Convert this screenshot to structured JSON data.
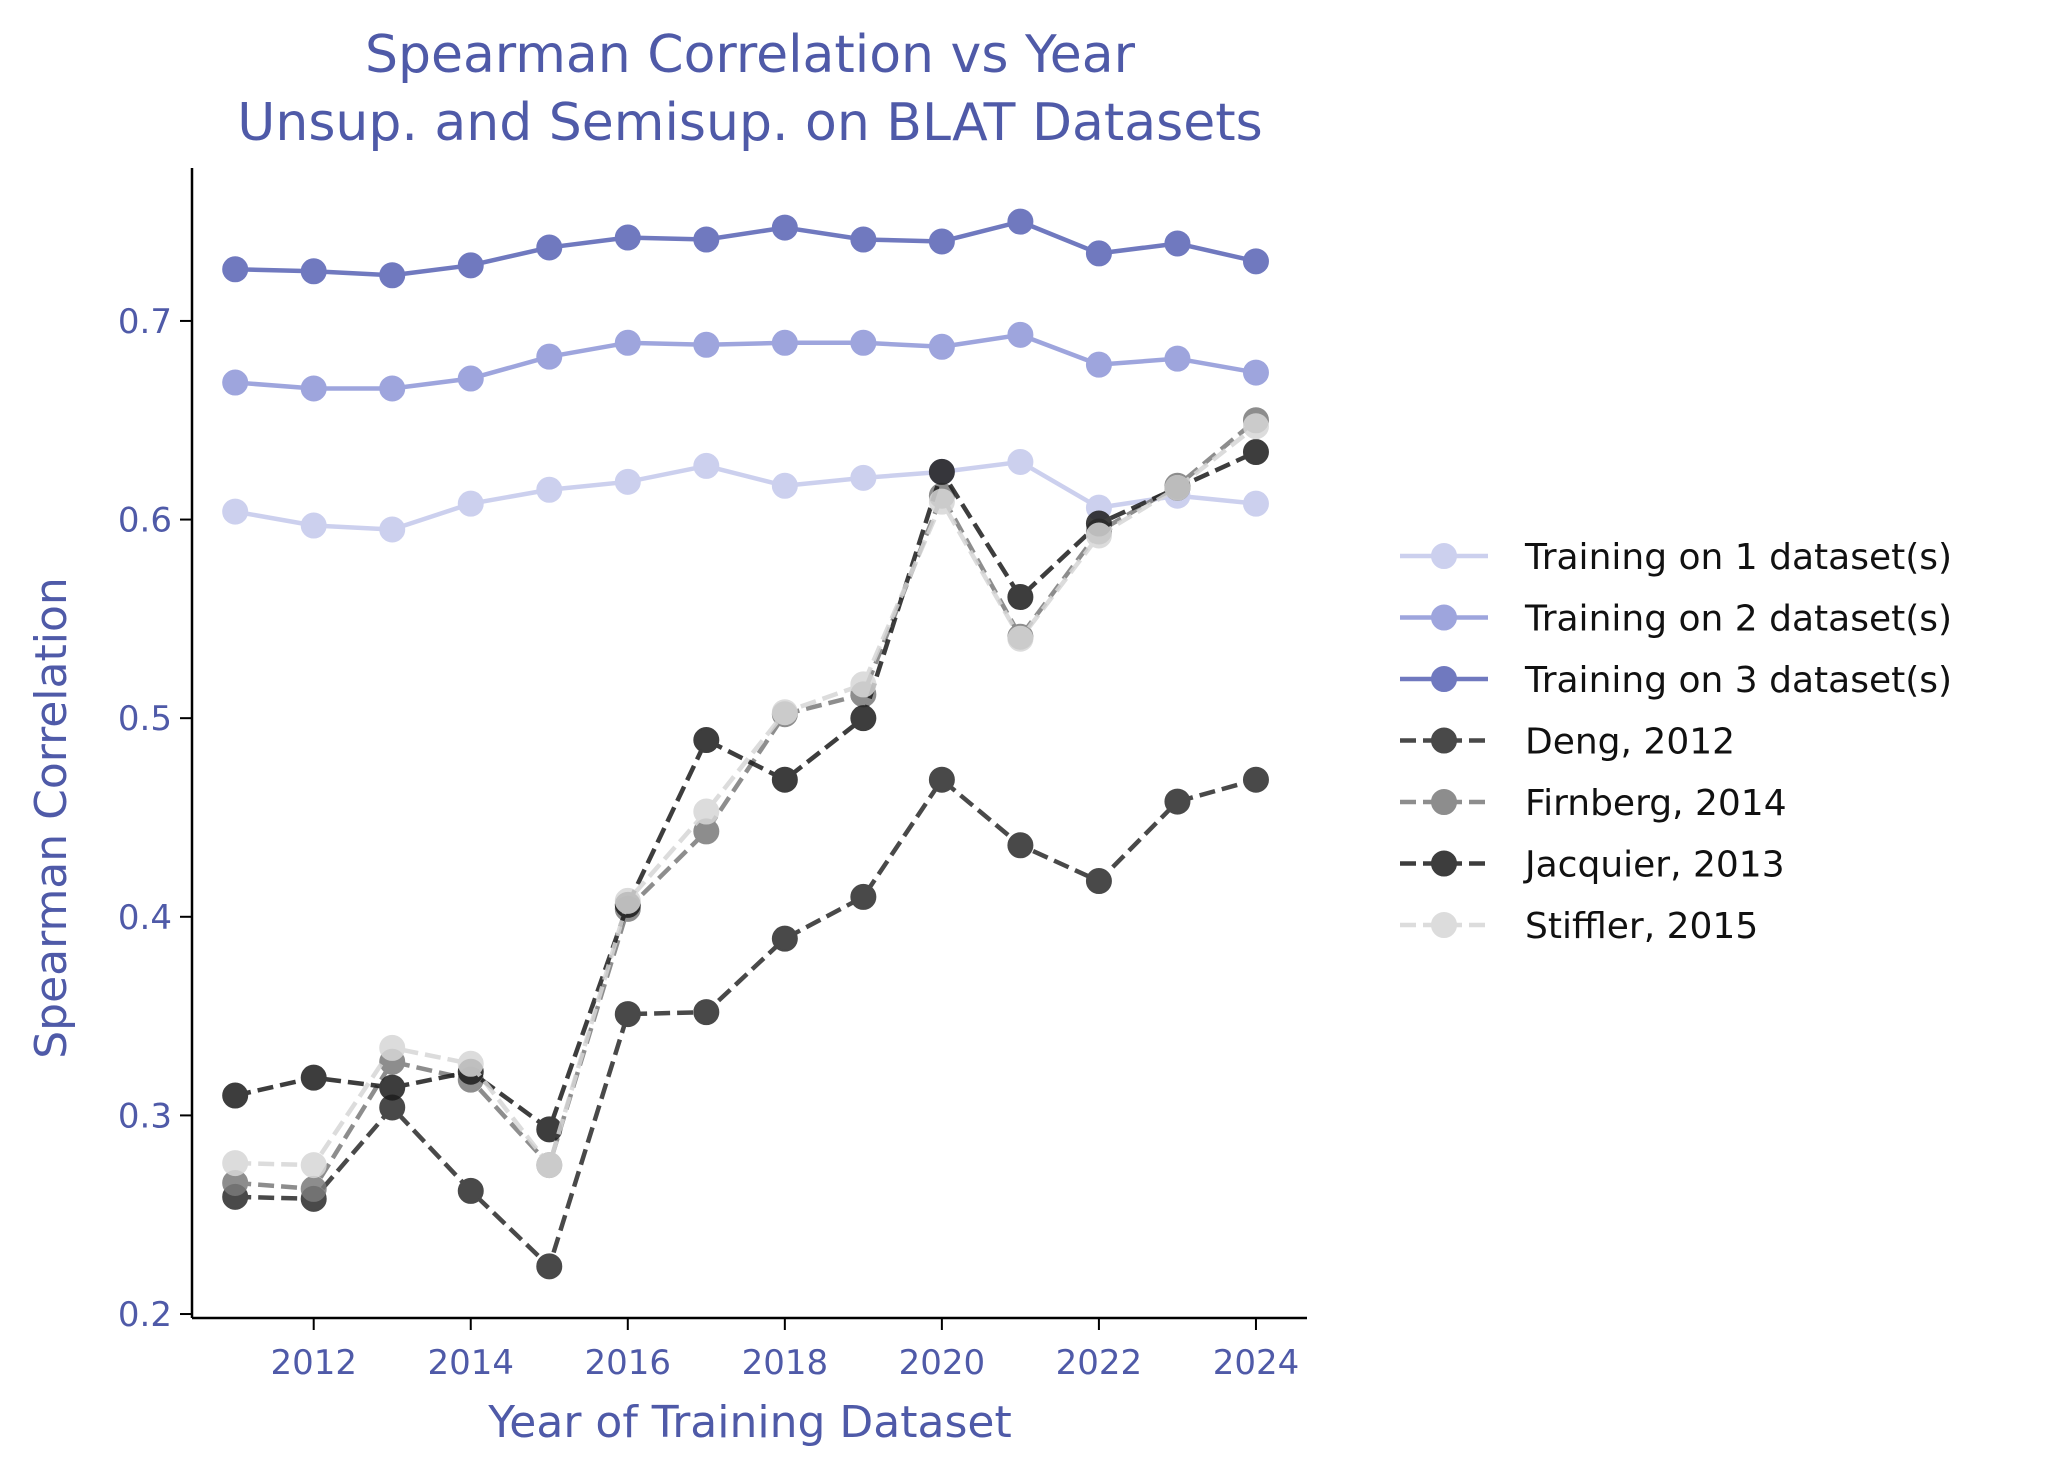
{
  "chart_data": {
    "type": "line",
    "title": "Spearman Correlation vs Year",
    "subtitle": "Unsup. and Semisup. on BLAT Datasets",
    "xlabel": "Year of Training Dataset",
    "ylabel": "Spearman Correlation",
    "x": [
      2011,
      2012,
      2013,
      2014,
      2015,
      2016,
      2017,
      2018,
      2019,
      2020,
      2021,
      2022,
      2023,
      2024
    ],
    "xlim": [
      2010.45,
      2024.65
    ],
    "ylim": [
      0.198,
      0.777
    ],
    "xticks": [
      2012,
      2014,
      2016,
      2018,
      2020,
      2022,
      2024
    ],
    "xtick_labels": [
      "2012",
      "2014",
      "2016",
      "2018",
      "2020",
      "2022",
      "2024"
    ],
    "yticks": [
      0.2,
      0.3,
      0.4,
      0.5,
      0.6,
      0.7
    ],
    "ytick_labels": [
      "0.2",
      "0.3",
      "0.4",
      "0.5",
      "0.6",
      "0.7"
    ],
    "grid": false,
    "legend_position": "right, outside",
    "series": [
      {
        "name": "Training on 1 dataset(s)",
        "color": "#c4c8ec",
        "dash": "solid",
        "values": [
          0.604,
          0.597,
          0.595,
          0.608,
          0.615,
          0.619,
          0.627,
          0.617,
          0.621,
          0.624,
          0.629,
          0.606,
          0.612,
          0.608
        ]
      },
      {
        "name": "Training on 2 dataset(s)",
        "color": "#8e96d8",
        "dash": "solid",
        "values": [
          0.669,
          0.666,
          0.666,
          0.671,
          0.682,
          0.689,
          0.688,
          0.689,
          0.689,
          0.687,
          0.693,
          0.678,
          0.681,
          0.674
        ]
      },
      {
        "name": "Training on 3 dataset(s)",
        "color": "#5862b4",
        "dash": "solid",
        "values": [
          0.726,
          0.725,
          0.723,
          0.728,
          0.737,
          0.742,
          0.741,
          0.747,
          0.741,
          0.74,
          0.75,
          0.734,
          0.739,
          0.73
        ]
      },
      {
        "name": "Deng, 2012",
        "color": "#2a2a2a",
        "dash": "dashed",
        "values": [
          0.259,
          0.258,
          0.304,
          0.262,
          0.224,
          0.351,
          0.352,
          0.389,
          0.41,
          0.469,
          0.436,
          0.418,
          0.458,
          0.469
        ]
      },
      {
        "name": "Firnberg, 2014",
        "color": "#7a7a7a",
        "dash": "dashed",
        "values": [
          0.266,
          0.263,
          0.327,
          0.318,
          0.275,
          0.404,
          0.443,
          0.502,
          0.512,
          0.612,
          0.541,
          0.594,
          0.617,
          0.65
        ]
      },
      {
        "name": "Jacquier, 2013",
        "color": "#1c1c1c",
        "dash": "dashed",
        "values": [
          0.31,
          0.319,
          0.314,
          0.322,
          0.293,
          0.406,
          0.489,
          0.469,
          0.5,
          0.624,
          0.561,
          0.598,
          0.616,
          0.634
        ]
      },
      {
        "name": "Stiffler, 2015",
        "color": "#d6d6d6",
        "dash": "dashed",
        "values": [
          0.276,
          0.275,
          0.334,
          0.326,
          0.275,
          0.408,
          0.453,
          0.503,
          0.517,
          0.609,
          0.54,
          0.592,
          0.616,
          0.647
        ]
      }
    ]
  }
}
